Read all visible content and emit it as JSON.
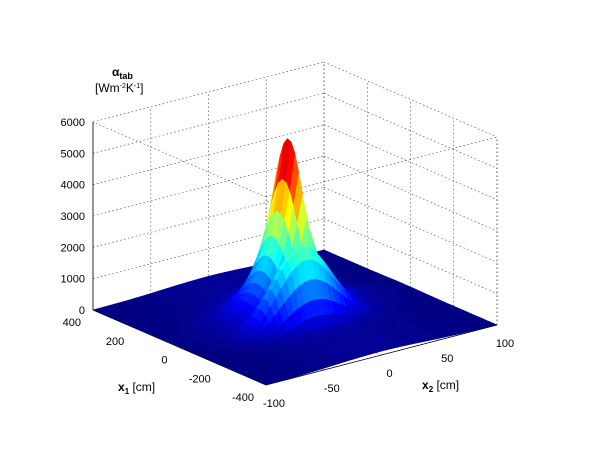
{
  "chart_data": {
    "type": "surface",
    "title": "",
    "zlabel": {
      "symbol": "α",
      "subscript": "tab",
      "unit_open": "[Wm",
      "unit_exp1": "-2",
      "unit_mid": "K",
      "unit_exp2": "-1",
      "unit_close": "]"
    },
    "x1label": {
      "symbol": "x",
      "subscript": "1",
      "unit": " [cm]"
    },
    "x2label": {
      "symbol": "x",
      "subscript": "2",
      "unit": " [cm]"
    },
    "x1_range": [
      -400,
      400
    ],
    "x2_range": [
      -100,
      100
    ],
    "z_range": [
      0,
      6000
    ],
    "x1_ticks": [
      "400",
      "200",
      "0",
      "-200",
      "-400"
    ],
    "x1_tick_values": [
      400,
      200,
      0,
      -200,
      -400
    ],
    "x2_ticks": [
      "-100",
      "-50",
      "0",
      "50",
      "100"
    ],
    "x2_tick_values": [
      -100,
      -50,
      0,
      50,
      100
    ],
    "z_ticks": [
      "0",
      "1000",
      "2000",
      "3000",
      "4000",
      "5000",
      "6000"
    ],
    "z_tick_values": [
      0,
      1000,
      2000,
      3000,
      4000,
      5000,
      6000
    ],
    "peak": {
      "value": 5500,
      "x1_center": 30,
      "x2_center": 0
    },
    "secondary_peak": {
      "value": 2500,
      "x1_center": -80,
      "x2_center": -10
    },
    "grid": true,
    "colormap": "jet"
  }
}
